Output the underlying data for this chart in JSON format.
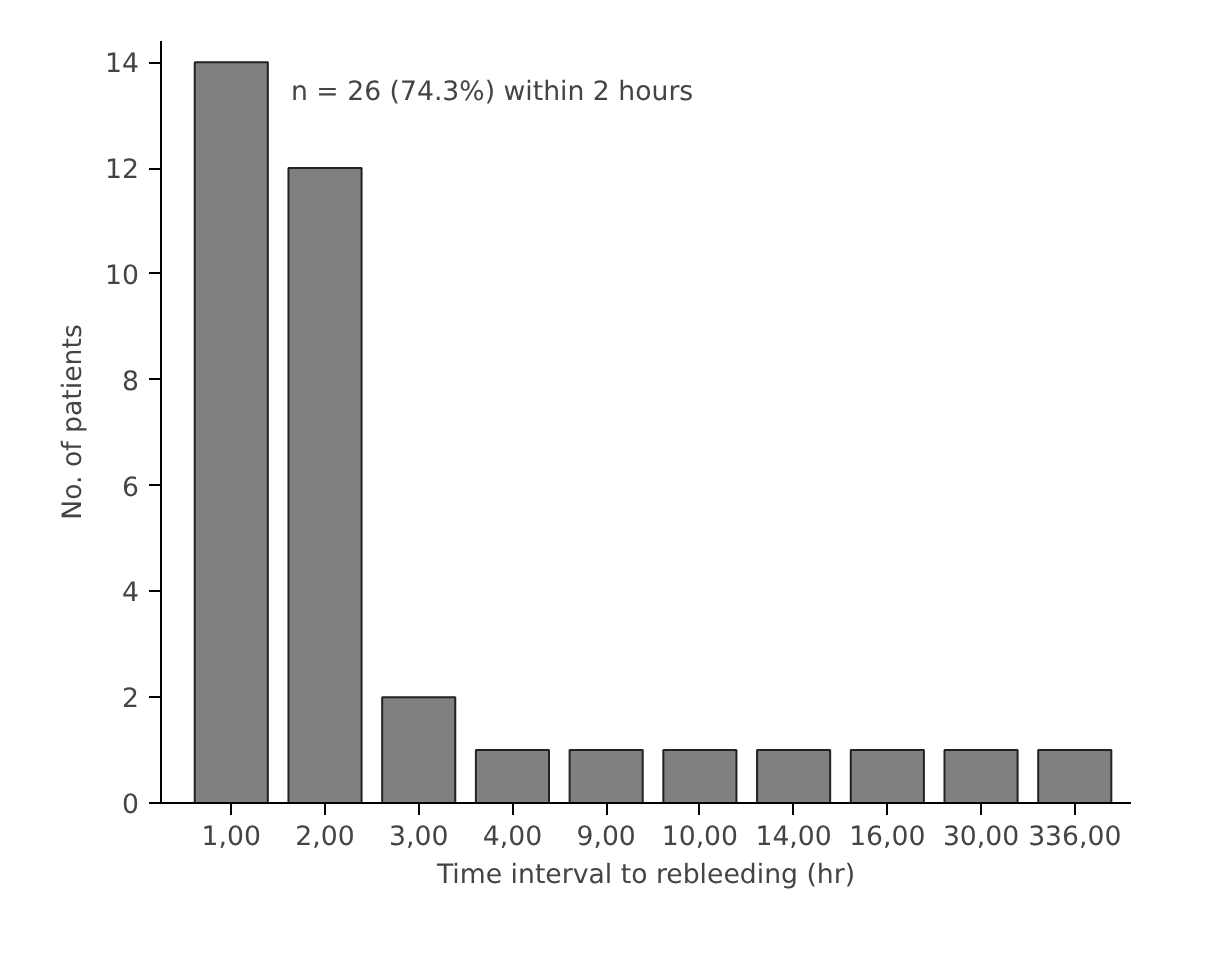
{
  "chart_data": {
    "type": "bar",
    "xlabel": "Time interval to rebleeding (hr)",
    "ylabel": "No. of patients",
    "categories": [
      "1,00",
      "2,00",
      "3,00",
      "4,00",
      "9,00",
      "10,00",
      "14,00",
      "16,00",
      "30,00",
      "336,00"
    ],
    "values": [
      14,
      12,
      2,
      1,
      1,
      1,
      1,
      1,
      1,
      1
    ],
    "color": "#808080",
    "ylim": [
      0,
      14.4
    ],
    "yticks": [
      0,
      2,
      4,
      6,
      8,
      10,
      12,
      14
    ],
    "grid": false,
    "annotations": [
      "n = 26 (74.3%) within 2 hours"
    ]
  }
}
